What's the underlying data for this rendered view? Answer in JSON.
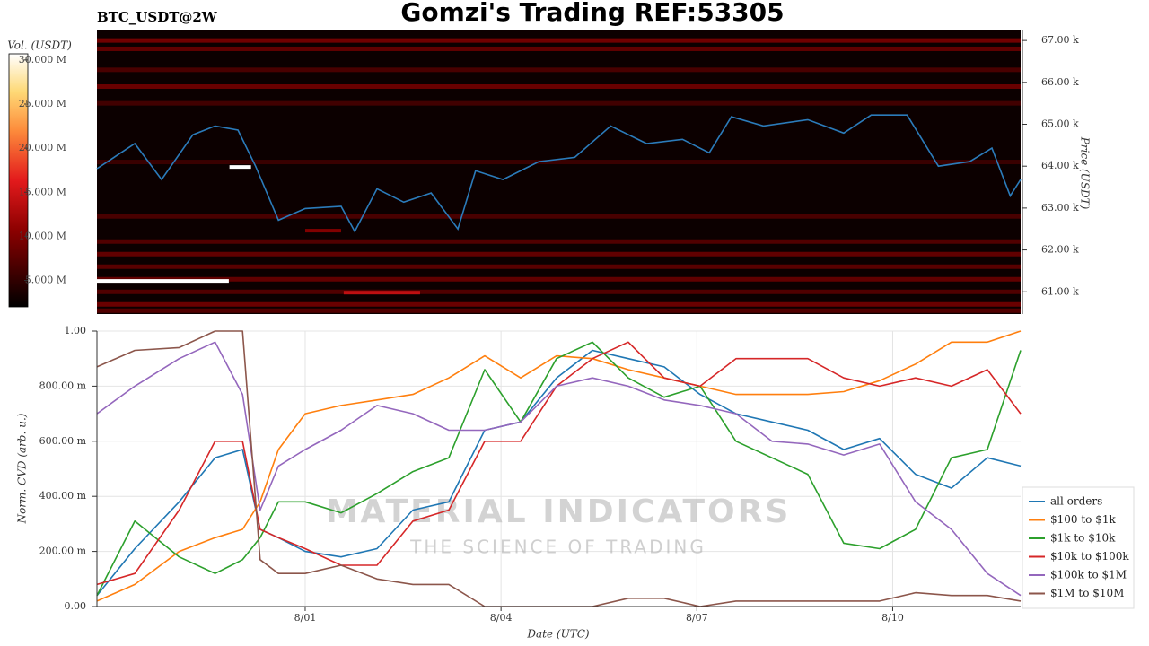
{
  "title": "Gomzi's Trading REF:53305",
  "watermark": {
    "title": "MATERIAL INDICATORS",
    "subtitle": "THE SCIENCE OF TRADING"
  },
  "chart_data": [
    {
      "type": "heatmap",
      "subtitle": "BTC_USDT@2W",
      "ylabel": "Price (USDT)",
      "colorbar_label": "Vol. (USDT)",
      "xlim": [
        -3.19,
        10.96
      ],
      "ylim": [
        60470,
        67260
      ],
      "yticks": [
        {
          "value": 61000,
          "label": "61.00 k"
        },
        {
          "value": 62000,
          "label": "62.00 k"
        },
        {
          "value": 63000,
          "label": "63.00 k"
        },
        {
          "value": 64000,
          "label": "64.00 k"
        },
        {
          "value": 65000,
          "label": "65.00 k"
        },
        {
          "value": 66000,
          "label": "66.00 k"
        },
        {
          "value": 67000,
          "label": "67.00 k"
        }
      ],
      "clim": [
        2000000,
        30700000
      ],
      "cticks": [
        {
          "value": 5000000,
          "label": "5.000 M"
        },
        {
          "value": 10000000,
          "label": "10.000 M"
        },
        {
          "value": 15000000,
          "label": "15.000 M"
        },
        {
          "value": 20000000,
          "label": "20.000 M"
        },
        {
          "value": 25000000,
          "label": "25.000 M"
        },
        {
          "value": 30000000,
          "label": "30.000 M"
        }
      ],
      "levels": [
        67000,
        66800,
        66300,
        65900,
        65500,
        64100,
        62800,
        62200,
        61900,
        61600,
        61300,
        61000,
        60700,
        60550
      ],
      "level_volumes": [
        9000000,
        8000000,
        6500000,
        8500000,
        6000000,
        5500000,
        6500000,
        7000000,
        8000000,
        7500000,
        8000000,
        7000000,
        8500000,
        7000000
      ],
      "walls": [
        {
          "x": [
            -3.19,
            -1.17
          ],
          "price": 61260,
          "volume": 30700000
        },
        {
          "x": [
            -1.16,
            -0.83
          ],
          "price": 63980,
          "volume": 30700000
        },
        {
          "x": [
            0.59,
            1.76
          ],
          "price": 60980,
          "volume": 14000000
        },
        {
          "x": [
            0.0,
            0.55
          ],
          "price": 62460,
          "volume": 10000000
        }
      ],
      "line": {
        "color": "#2b7bba",
        "x": [
          -3.19,
          -2.61,
          -2.2,
          -1.72,
          -1.38,
          -1.03,
          -0.76,
          -0.41,
          0,
          0.55,
          0.76,
          1.1,
          1.51,
          1.93,
          2.34,
          2.61,
          3.03,
          3.58,
          4.13,
          4.68,
          5.23,
          5.78,
          6.19,
          6.53,
          7.02,
          7.7,
          8.25,
          8.67,
          9.22,
          9.7,
          10.18,
          10.52,
          10.8,
          10.96
        ],
        "values": [
          63940,
          64540,
          63680,
          64750,
          64960,
          64860,
          64000,
          62710,
          62990,
          63040,
          62440,
          63460,
          63140,
          63360,
          62500,
          63890,
          63680,
          64110,
          64210,
          64960,
          64540,
          64640,
          64320,
          65180,
          64960,
          65110,
          64790,
          65220,
          65220,
          64000,
          64110,
          64430,
          63290,
          63680
        ]
      }
    },
    {
      "type": "line",
      "xlabel": "Date (UTC)",
      "ylabel": "Norm. CVD (arb. u.)",
      "xlim": [
        -3.19,
        10.96
      ],
      "xticks": [
        {
          "value": 0,
          "label": "8/01"
        },
        {
          "value": 3,
          "label": "8/04"
        },
        {
          "value": 6,
          "label": "8/07"
        },
        {
          "value": 9,
          "label": "8/10"
        }
      ],
      "ylim": [
        0,
        1
      ],
      "yticks": [
        {
          "value": 0,
          "label": "0.00"
        },
        {
          "value": 0.2,
          "label": "200.00 m"
        },
        {
          "value": 0.4,
          "label": "400.00 m"
        },
        {
          "value": 0.6,
          "label": "600.00 m"
        },
        {
          "value": 0.8,
          "label": "800.00 m"
        },
        {
          "value": 1,
          "label": "1.00"
        }
      ],
      "grid": true,
      "legend": "lower right",
      "x": [
        -3.19,
        -2.61,
        -1.93,
        -1.38,
        -0.96,
        -0.69,
        -0.41,
        0,
        0.55,
        1.1,
        1.65,
        2.2,
        2.75,
        3.3,
        3.85,
        4.4,
        4.95,
        5.5,
        6.05,
        6.6,
        7.15,
        7.7,
        8.25,
        8.8,
        9.35,
        9.9,
        10.45,
        10.96
      ],
      "series": [
        {
          "name": "all orders",
          "color": "#1f77b4",
          "values": [
            0.04,
            0.21,
            0.38,
            0.54,
            0.57,
            0.28,
            0.25,
            0.2,
            0.18,
            0.21,
            0.35,
            0.38,
            0.64,
            0.67,
            0.83,
            0.93,
            0.9,
            0.87,
            0.77,
            0.7,
            0.67,
            0.64,
            0.57,
            0.61,
            0.48,
            0.43,
            0.54,
            0.51
          ]
        },
        {
          "name": "$100 to $1k",
          "color": "#ff7f0e",
          "values": [
            0.02,
            0.08,
            0.2,
            0.25,
            0.28,
            0.38,
            0.57,
            0.7,
            0.73,
            0.75,
            0.77,
            0.83,
            0.91,
            0.83,
            0.91,
            0.9,
            0.86,
            0.83,
            0.8,
            0.77,
            0.77,
            0.77,
            0.78,
            0.82,
            0.88,
            0.96,
            0.96,
            1.0
          ]
        },
        {
          "name": "$1k to $10k",
          "color": "#2ca02c",
          "values": [
            0.04,
            0.31,
            0.18,
            0.12,
            0.17,
            0.25,
            0.38,
            0.38,
            0.34,
            0.41,
            0.49,
            0.54,
            0.86,
            0.67,
            0.9,
            0.96,
            0.83,
            0.76,
            0.8,
            0.6,
            0.54,
            0.48,
            0.23,
            0.21,
            0.28,
            0.54,
            0.57,
            0.93
          ]
        },
        {
          "name": "$10k to $100k",
          "color": "#d62728",
          "values": [
            0.08,
            0.12,
            0.35,
            0.6,
            0.6,
            0.28,
            0.25,
            0.21,
            0.15,
            0.15,
            0.31,
            0.35,
            0.6,
            0.6,
            0.8,
            0.9,
            0.96,
            0.83,
            0.8,
            0.9,
            0.9,
            0.9,
            0.83,
            0.8,
            0.83,
            0.8,
            0.86,
            0.7
          ]
        },
        {
          "name": "$100k to $1M",
          "color": "#9467bd",
          "values": [
            0.7,
            0.8,
            0.9,
            0.96,
            0.77,
            0.35,
            0.51,
            0.57,
            0.64,
            0.73,
            0.7,
            0.64,
            0.64,
            0.67,
            0.8,
            0.83,
            0.8,
            0.75,
            0.73,
            0.7,
            0.6,
            0.59,
            0.55,
            0.59,
            0.38,
            0.28,
            0.12,
            0.04
          ]
        },
        {
          "name": "$1M to $10M",
          "color": "#8c564b",
          "values": [
            0.87,
            0.93,
            0.94,
            1.0,
            1.0,
            0.17,
            0.12,
            0.12,
            0.15,
            0.1,
            0.08,
            0.08,
            0,
            0,
            0,
            0,
            0.03,
            0.03,
            0,
            0.02,
            0.02,
            0.02,
            0.02,
            0.02,
            0.05,
            0.04,
            0.04,
            0.02
          ]
        }
      ]
    }
  ]
}
